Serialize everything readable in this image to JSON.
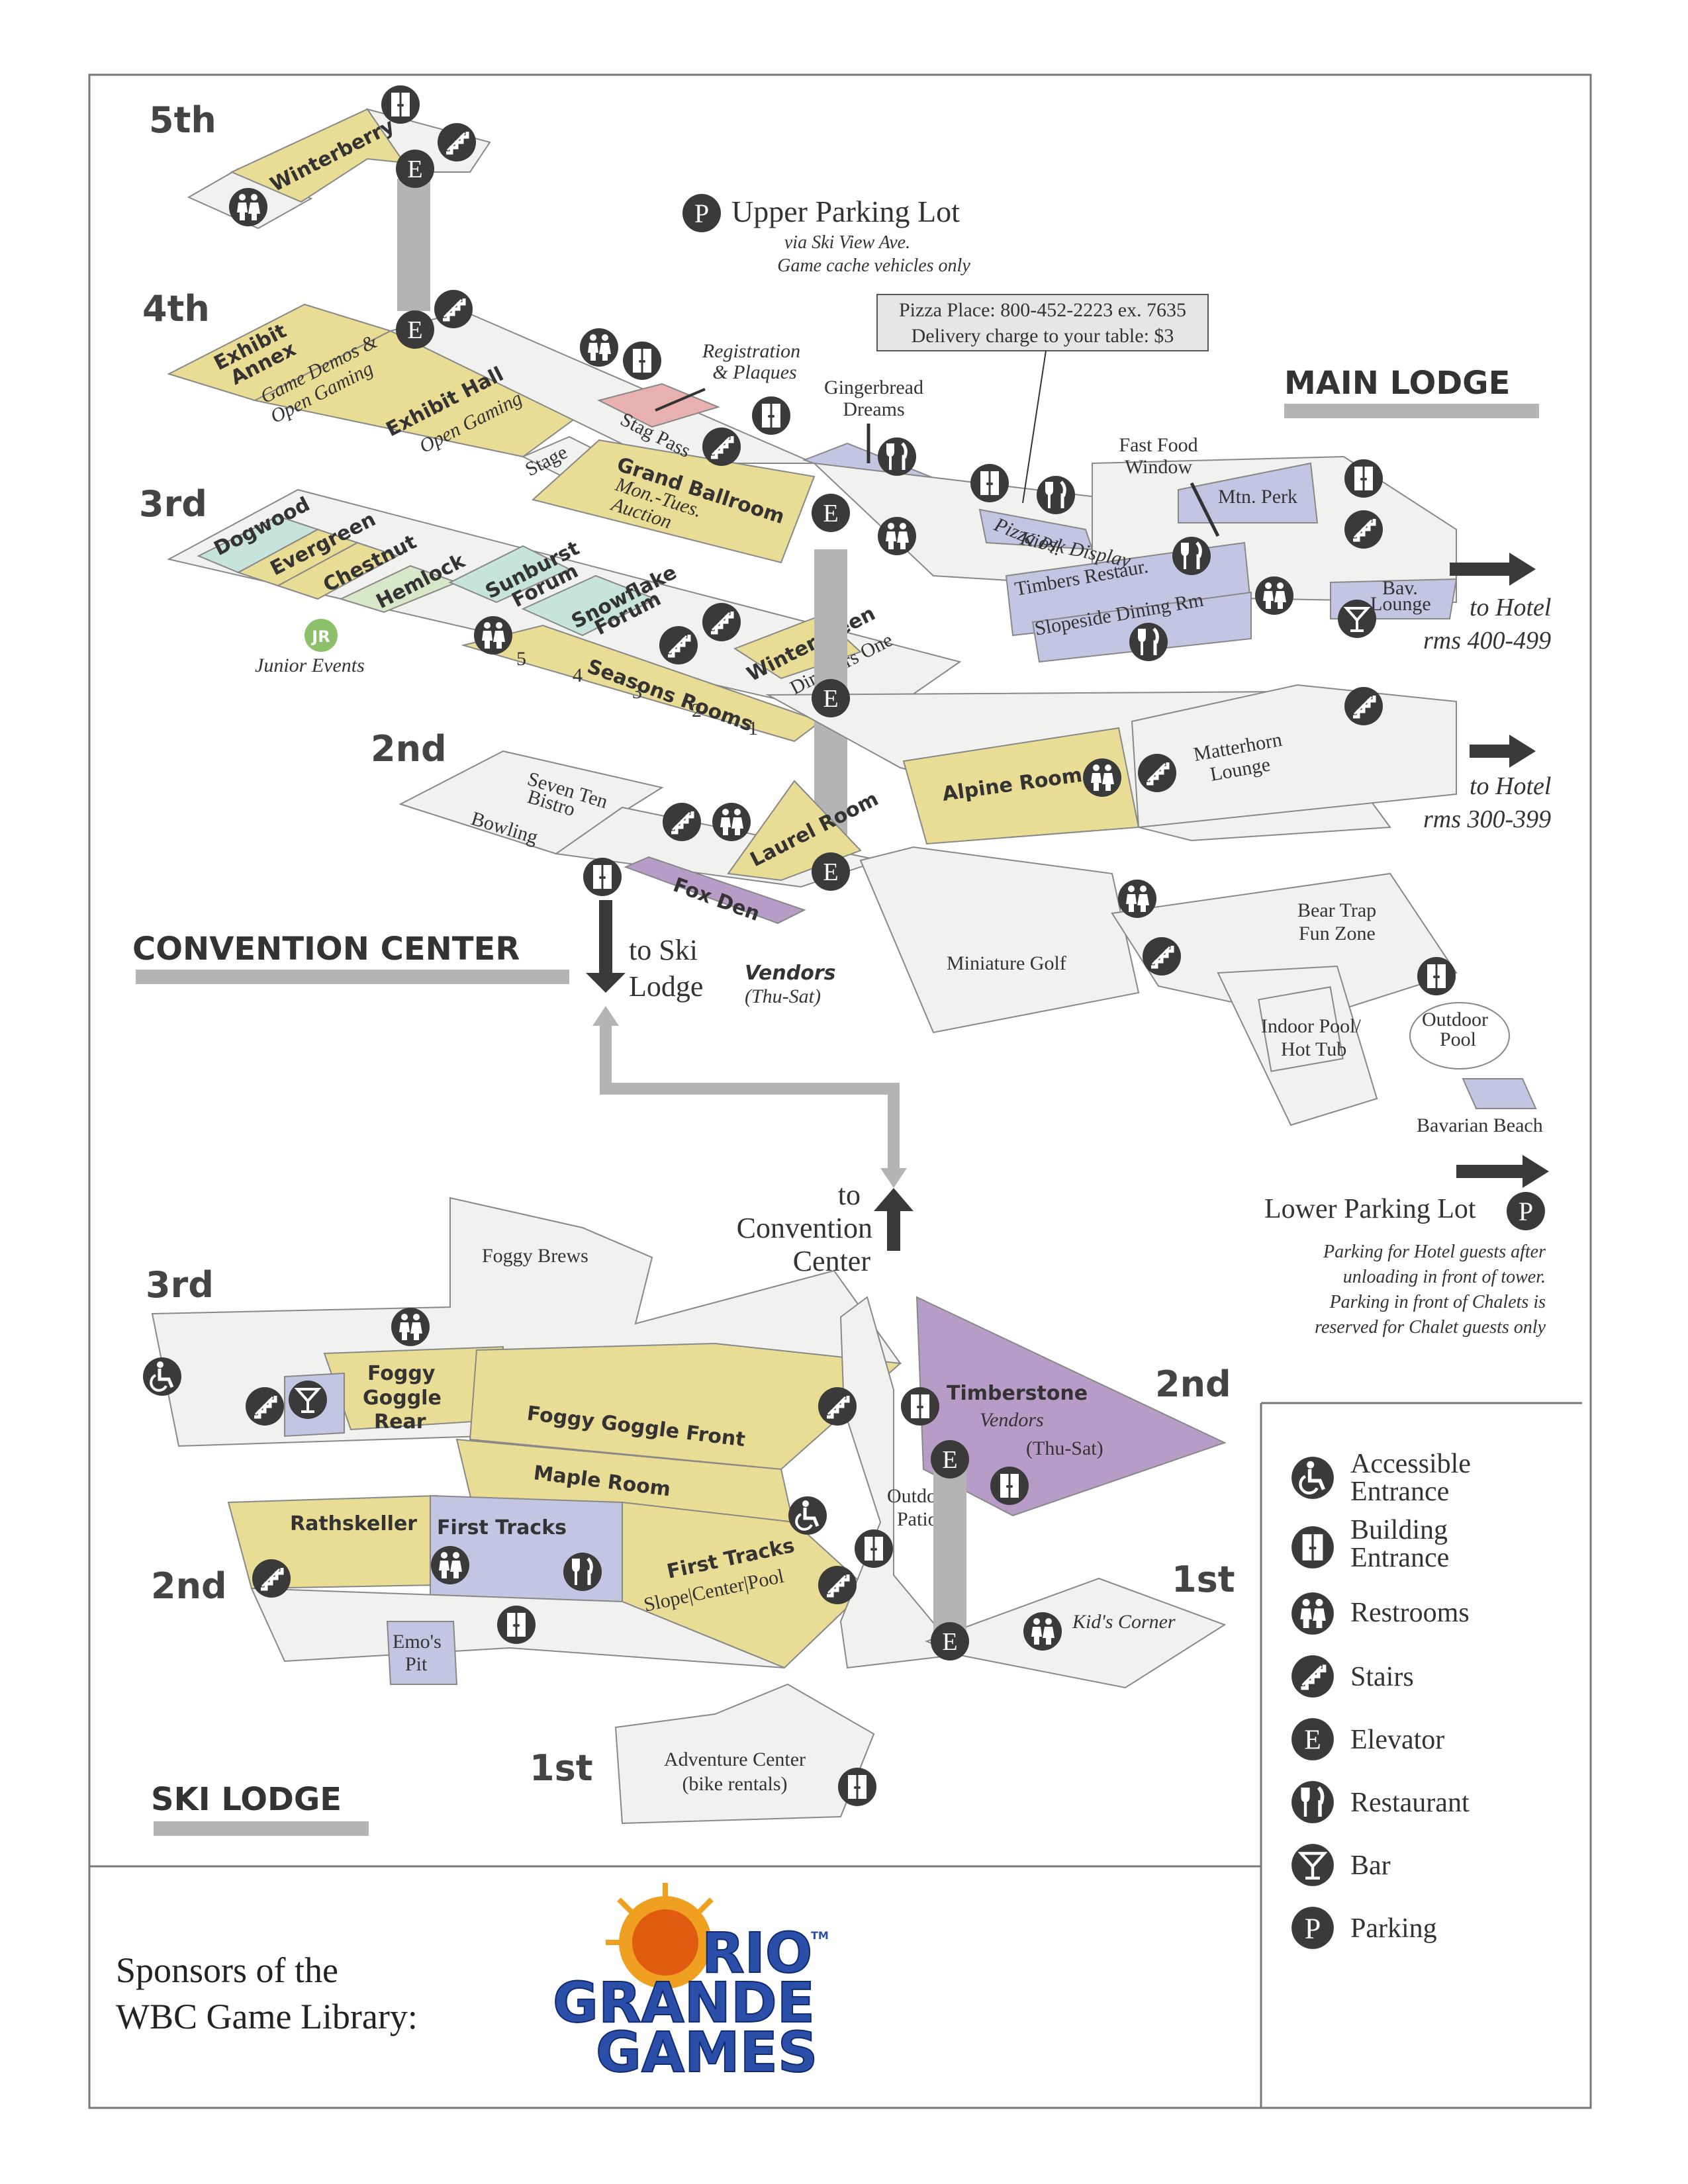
{
  "floors": {
    "fifth": "5th",
    "fourth": "4th",
    "third_main": "3rd",
    "second_main": "2nd",
    "third_ski": "3rd",
    "second_ski": "2nd",
    "second_timberstone": "2nd",
    "first_ski": "1st",
    "first_kids": "1st"
  },
  "sections": {
    "main_lodge": "MAIN LODGE",
    "convention_center": "CONVENTION CENTER",
    "ski_lodge": "SKI LODGE"
  },
  "colors": {
    "yellow": "#e9dc94",
    "gray": "#f1f1ef",
    "blue": "#c3c6e3",
    "purple": "#b79cc8",
    "teal": "#c6e4dc",
    "pink": "#e8b1b0",
    "connector": "#b4b4b4",
    "icon": "#3a3a3a"
  },
  "upper_parking": {
    "title": "Upper Parking Lot",
    "line1": "via Ski View Ave.",
    "line2": "Game cache vehicles only"
  },
  "pizza": {
    "line1": "Pizza Place: 800-452-2223 ex. 7635",
    "line2": "Delivery charge to your table: $3"
  },
  "rooms": {
    "winterberry": "Winterberry",
    "exhibit_annex_1": "Exhibit",
    "exhibit_annex_2": "Annex",
    "game_demos_1": "Game Demos &",
    "game_demos_2": "Open Gaming",
    "exhibit_hall": "Exhibit Hall",
    "open_gaming": "Open Gaming",
    "stage": "Stage",
    "stag_pass": "Stag Pass",
    "registration_1": "Registration",
    "registration_2": "& Plaques",
    "grand_ballroom": "Grand Ballroom",
    "mon_tues": "Mon.-Tues.",
    "auction": "Auction",
    "gingerbread_1": "Gingerbread",
    "gingerbread_2": "Dreams",
    "pizza_pl": "Pizza Pl.",
    "kiosk": "Kiosk Display",
    "fast_food_1": "Fast Food",
    "fast_food_2": "Window",
    "mtn_perk": "Mtn. Perk",
    "timbers": "Timbers Restaur.",
    "slopeside": "Slopeside Dining Rm",
    "bav_1": "Bav.",
    "bav_2": "Lounge",
    "dogwood": "Dogwood",
    "evergreen": "Evergreen",
    "chestnut": "Chestnut",
    "hemlock": "Hemlock",
    "junior_badge": "JR",
    "junior_events": "Junior Events",
    "sunburst_1": "Sunburst",
    "sunburst_2": "Forum",
    "snowflake_1": "Snowflake",
    "snowflake_2": "Forum",
    "seasons": "Seasons Rooms",
    "seasons_nums": [
      "5",
      "4",
      "3",
      "2",
      "1"
    ],
    "wintergreen": "Wintergreen",
    "directors_one": "Directors One",
    "alpine": "Alpine Room",
    "matterhorn_1": "Matterhorn",
    "matterhorn_2": "Lounge",
    "seven_ten_1": "Seven Ten",
    "seven_ten_2": "Bistro",
    "bowling": "Bowling",
    "laurel": "Laurel Room",
    "fox_den": "Fox Den",
    "vendors": "Vendors",
    "thu_sat": "(Thu-Sat)",
    "miniature_golf": "Miniature Golf",
    "bear_trap_1": "Bear Trap",
    "bear_trap_2": "Fun Zone",
    "indoor_pool_1": "Indoor Pool/",
    "indoor_pool_2": "Hot Tub",
    "outdoor_pool_1": "Outdoor",
    "outdoor_pool_2": "Pool",
    "bavarian_beach": "Bavarian Beach",
    "foggy_brews": "Foggy Brews",
    "foggy_goggle_rear_1": "Foggy",
    "foggy_goggle_rear_2": "Goggle",
    "foggy_goggle_rear_3": "Rear",
    "foggy_goggle_front": "Foggy Goggle Front",
    "maple": "Maple Room",
    "rathskeller": "Rathskeller",
    "first_tracks": "First Tracks",
    "first_tracks_2": "First Tracks",
    "slope_center_pool": "Slope|Center|Pool",
    "emos_1": "Emo's",
    "emos_2": "Pit",
    "timberstone": "Timberstone",
    "timberstone_vendors": "Vendors",
    "timberstone_days": "(Thu-Sat)",
    "outdoor_patio_1": "Outdoor",
    "outdoor_patio_2": "Patio",
    "kids_corner": "Kid's Corner",
    "adventure_1": "Adventure Center",
    "adventure_2": "(bike rentals)"
  },
  "directions": {
    "hotel_upper_1": "to Hotel",
    "hotel_upper_2": "rms 400-499",
    "hotel_lower_1": "to Hotel",
    "hotel_lower_2": "rms 300-399",
    "ski_lodge_1": "to Ski",
    "ski_lodge_2": "Lodge",
    "convention_1": "to",
    "convention_2": "Convention",
    "convention_3": "Center"
  },
  "lower_parking": {
    "title": "Lower Parking Lot",
    "note1": "Parking for Hotel guests after",
    "note2": "unloading in front of tower.",
    "note3": "Parking in front of Chalets is",
    "note4": "reserved for Chalet guests only"
  },
  "legend": [
    {
      "icon": "accessible-icon",
      "line1": "Accessible",
      "line2": "Entrance"
    },
    {
      "icon": "building-entrance-icon",
      "line1": "Building",
      "line2": "Entrance"
    },
    {
      "icon": "restrooms-icon",
      "line1": "Restrooms",
      "line2": ""
    },
    {
      "icon": "stairs-icon",
      "line1": "Stairs",
      "line2": ""
    },
    {
      "icon": "elevator-icon",
      "line1": "Elevator",
      "line2": ""
    },
    {
      "icon": "restaurant-icon",
      "line1": "Restaurant",
      "line2": ""
    },
    {
      "icon": "bar-icon",
      "line1": "Bar",
      "line2": ""
    },
    {
      "icon": "parking-icon",
      "line1": "Parking",
      "line2": ""
    }
  ],
  "icon_glyphs": {
    "elevator": "E",
    "parking": "P"
  },
  "sponsor": {
    "line1": "Sponsors of the",
    "line2": "WBC Game Library:",
    "logo_1": "RIO",
    "logo_2": "GRANDE",
    "logo_3": "GAMES",
    "logo_tm": "TM"
  }
}
